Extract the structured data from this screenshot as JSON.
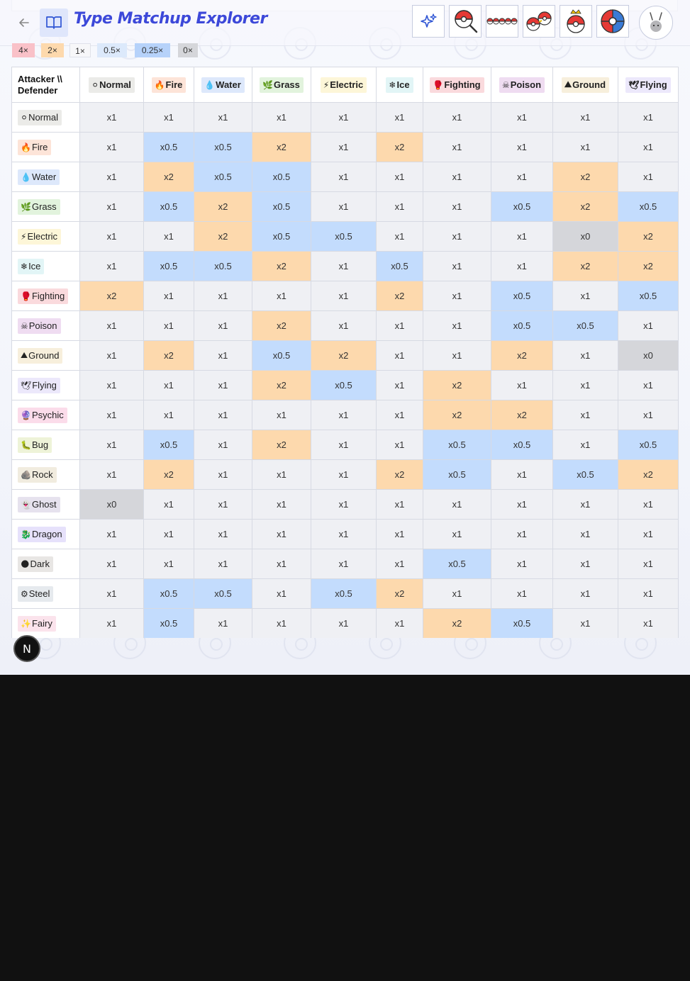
{
  "header": {
    "title": "Type Matchup Explorer",
    "back_icon": "arrow-left-icon",
    "book_icon": "book-open-icon",
    "tools": [
      {
        "name": "sparkle-tool-button",
        "icon": "sparkles-icon"
      },
      {
        "name": "pokeball-search-button",
        "icon": "pokeball-search-icon"
      },
      {
        "name": "pokeball-row-button",
        "icon": "pokeball-row-icon"
      },
      {
        "name": "pokeball-compare-button",
        "icon": "pokeball-compare-icon"
      },
      {
        "name": "pokeball-crown-button",
        "icon": "pokeball-crown-icon"
      },
      {
        "name": "pokeball-target-button",
        "icon": "pokeball-target-icon"
      }
    ],
    "avatar_icon": "rabbit-avatar-icon"
  },
  "legend": [
    {
      "label": "4×",
      "color": "#f9c1c8"
    },
    {
      "label": "2×",
      "color": "#fdd9ad"
    },
    {
      "label": "1×",
      "color": "#f7f7f9"
    },
    {
      "label": "0.5×",
      "color": "#dce9fb"
    },
    {
      "label": "0.25×",
      "color": "#b6d2fa"
    },
    {
      "label": "0×",
      "color": "#d5d6da"
    }
  ],
  "matrix": {
    "corner_label_line1": "Attacker \\\\",
    "corner_label_line2": "Defender",
    "columns": [
      {
        "name": "Normal",
        "glyph": "⚪",
        "chip": "#ebebe8"
      },
      {
        "name": "Fire",
        "glyph": "🔥",
        "chip": "#fde4d8"
      },
      {
        "name": "Water",
        "glyph": "💧",
        "chip": "#dde8fb"
      },
      {
        "name": "Grass",
        "glyph": "🌿",
        "chip": "#e2f3dd"
      },
      {
        "name": "Electric",
        "glyph": "⚡",
        "chip": "#fdf6d8"
      },
      {
        "name": "Ice",
        "glyph": "❄",
        "chip": "#e2f5f6"
      },
      {
        "name": "Fighting",
        "glyph": "🥊",
        "chip": "#fadadd"
      },
      {
        "name": "Poison",
        "glyph": "☠",
        "chip": "#efdcf1"
      },
      {
        "name": "Ground",
        "glyph": "⛰",
        "chip": "#f7efdc"
      },
      {
        "name": "Flying",
        "glyph": "🕊",
        "chip": "#ece8fb"
      }
    ],
    "rows": [
      {
        "name": "Normal",
        "glyph": "⚪",
        "chip": "#ebebe8",
        "values": [
          "x1",
          "x1",
          "x1",
          "x1",
          "x1",
          "x1",
          "x1",
          "x1",
          "x1",
          "x1"
        ]
      },
      {
        "name": "Fire",
        "glyph": "🔥",
        "chip": "#fde4d8",
        "values": [
          "x1",
          "x0.5",
          "x0.5",
          "x2",
          "x1",
          "x2",
          "x1",
          "x1",
          "x1",
          "x1"
        ]
      },
      {
        "name": "Water",
        "glyph": "💧",
        "chip": "#dde8fb",
        "values": [
          "x1",
          "x2",
          "x0.5",
          "x0.5",
          "x1",
          "x1",
          "x1",
          "x1",
          "x2",
          "x1"
        ]
      },
      {
        "name": "Grass",
        "glyph": "🌿",
        "chip": "#e2f3dd",
        "values": [
          "x1",
          "x0.5",
          "x2",
          "x0.5",
          "x1",
          "x1",
          "x1",
          "x0.5",
          "x2",
          "x0.5"
        ]
      },
      {
        "name": "Electric",
        "glyph": "⚡",
        "chip": "#fdf6d8",
        "values": [
          "x1",
          "x1",
          "x2",
          "x0.5",
          "x0.5",
          "x1",
          "x1",
          "x1",
          "x0",
          "x2"
        ]
      },
      {
        "name": "Ice",
        "glyph": "❄",
        "chip": "#e2f5f6",
        "values": [
          "x1",
          "x0.5",
          "x0.5",
          "x2",
          "x1",
          "x0.5",
          "x1",
          "x1",
          "x2",
          "x2"
        ]
      },
      {
        "name": "Fighting",
        "glyph": "🥊",
        "chip": "#fadadd",
        "values": [
          "x2",
          "x1",
          "x1",
          "x1",
          "x1",
          "x2",
          "x1",
          "x0.5",
          "x1",
          "x0.5"
        ]
      },
      {
        "name": "Poison",
        "glyph": "☠",
        "chip": "#efdcf1",
        "values": [
          "x1",
          "x1",
          "x1",
          "x2",
          "x1",
          "x1",
          "x1",
          "x0.5",
          "x0.5",
          "x1"
        ]
      },
      {
        "name": "Ground",
        "glyph": "⛰",
        "chip": "#f7efdc",
        "values": [
          "x1",
          "x2",
          "x1",
          "x0.5",
          "x2",
          "x1",
          "x1",
          "x2",
          "x1",
          "x0"
        ]
      },
      {
        "name": "Flying",
        "glyph": "🕊",
        "chip": "#ece8fb",
        "values": [
          "x1",
          "x1",
          "x1",
          "x2",
          "x0.5",
          "x1",
          "x2",
          "x1",
          "x1",
          "x1"
        ]
      },
      {
        "name": "Psychic",
        "glyph": "🔮",
        "chip": "#fbdcea",
        "values": [
          "x1",
          "x1",
          "x1",
          "x1",
          "x1",
          "x1",
          "x2",
          "x2",
          "x1",
          "x1"
        ]
      },
      {
        "name": "Bug",
        "glyph": "🐛",
        "chip": "#eef3d8",
        "values": [
          "x1",
          "x0.5",
          "x1",
          "x2",
          "x1",
          "x1",
          "x0.5",
          "x0.5",
          "x1",
          "x0.5"
        ]
      },
      {
        "name": "Rock",
        "glyph": "🪨",
        "chip": "#f1ecdf",
        "values": [
          "x1",
          "x2",
          "x1",
          "x1",
          "x1",
          "x2",
          "x0.5",
          "x1",
          "x0.5",
          "x2"
        ]
      },
      {
        "name": "Ghost",
        "glyph": "👻",
        "chip": "#e6e2ee",
        "values": [
          "x0",
          "x1",
          "x1",
          "x1",
          "x1",
          "x1",
          "x1",
          "x1",
          "x1",
          "x1"
        ]
      },
      {
        "name": "Dragon",
        "glyph": "🐉",
        "chip": "#e6e1fb",
        "values": [
          "x1",
          "x1",
          "x1",
          "x1",
          "x1",
          "x1",
          "x1",
          "x1",
          "x1",
          "x1"
        ]
      },
      {
        "name": "Dark",
        "glyph": "🌑",
        "chip": "#e8e6e4",
        "values": [
          "x1",
          "x1",
          "x1",
          "x1",
          "x1",
          "x1",
          "x0.5",
          "x1",
          "x1",
          "x1"
        ]
      },
      {
        "name": "Steel",
        "glyph": "⚙",
        "chip": "#e6eaee",
        "values": [
          "x1",
          "x0.5",
          "x0.5",
          "x1",
          "x0.5",
          "x2",
          "x1",
          "x1",
          "x1",
          "x1"
        ]
      },
      {
        "name": "Fairy",
        "glyph": "✨",
        "chip": "#fbe3ec",
        "values": [
          "x1",
          "x0.5",
          "x1",
          "x1",
          "x1",
          "x1",
          "x2",
          "x0.5",
          "x1",
          "x1"
        ]
      }
    ]
  },
  "fab": {
    "label": "N",
    "icon": "next-logo-icon"
  }
}
